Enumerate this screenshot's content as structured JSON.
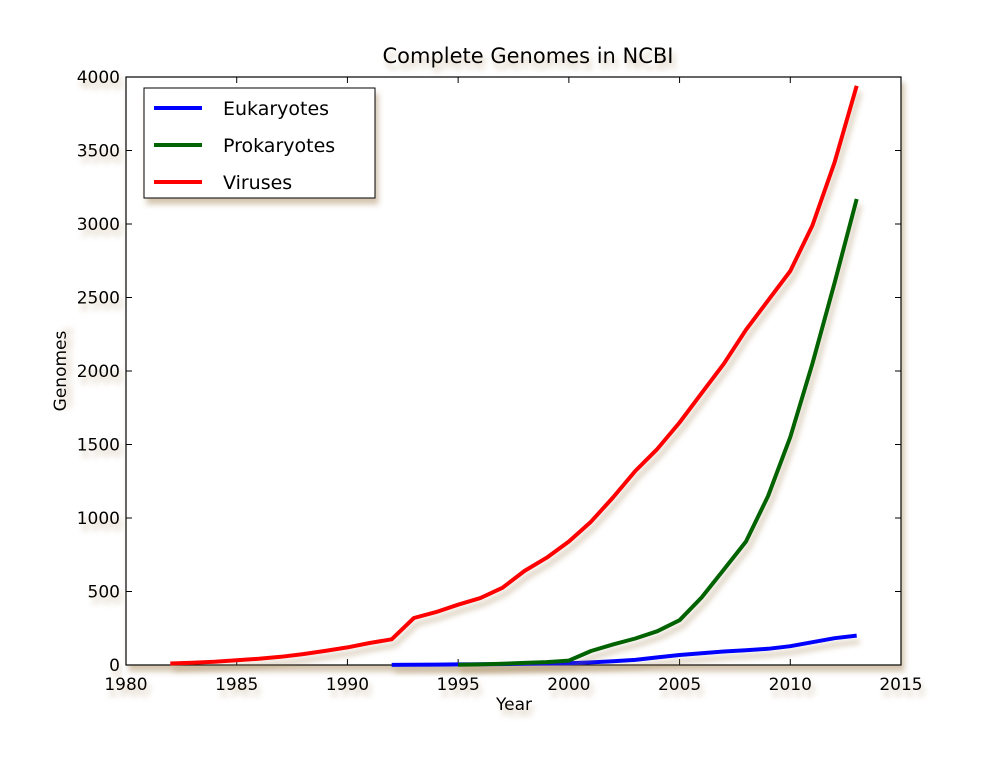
{
  "chart_data": {
    "type": "line",
    "title": "Complete Genomes in NCBI",
    "xlabel": "Year",
    "ylabel": "Genomes",
    "xlim": [
      1980,
      2015
    ],
    "ylim": [
      0,
      4000
    ],
    "x_ticks": [
      1980,
      1985,
      1990,
      1995,
      2000,
      2005,
      2010,
      2015
    ],
    "y_ticks": [
      0,
      500,
      1000,
      1500,
      2000,
      2500,
      3000,
      3500,
      4000
    ],
    "grid": false,
    "legend_position": "upper-left",
    "series": [
      {
        "name": "Eukaryotes",
        "color": "#0000ff",
        "points": [
          [
            1992,
            1
          ],
          [
            1993,
            2
          ],
          [
            1994,
            3
          ],
          [
            1995,
            4
          ],
          [
            1996,
            5
          ],
          [
            1997,
            6
          ],
          [
            1998,
            8
          ],
          [
            1999,
            10
          ],
          [
            2000,
            12
          ],
          [
            2001,
            18
          ],
          [
            2002,
            25
          ],
          [
            2003,
            35
          ],
          [
            2004,
            52
          ],
          [
            2005,
            68
          ],
          [
            2006,
            80
          ],
          [
            2007,
            92
          ],
          [
            2008,
            100
          ],
          [
            2009,
            110
          ],
          [
            2010,
            128
          ],
          [
            2011,
            155
          ],
          [
            2012,
            182
          ],
          [
            2013,
            200
          ]
        ]
      },
      {
        "name": "Prokaryotes",
        "color": "#006400",
        "points": [
          [
            1995,
            2
          ],
          [
            1996,
            4
          ],
          [
            1997,
            8
          ],
          [
            1998,
            14
          ],
          [
            1999,
            20
          ],
          [
            2000,
            30
          ],
          [
            2001,
            95
          ],
          [
            2002,
            140
          ],
          [
            2003,
            180
          ],
          [
            2004,
            230
          ],
          [
            2005,
            305
          ],
          [
            2006,
            460
          ],
          [
            2007,
            650
          ],
          [
            2008,
            840
          ],
          [
            2009,
            1150
          ],
          [
            2010,
            1550
          ],
          [
            2011,
            2050
          ],
          [
            2012,
            2600
          ],
          [
            2013,
            3170
          ]
        ]
      },
      {
        "name": "Viruses",
        "color": "#ff0000",
        "points": [
          [
            1982,
            10
          ],
          [
            1983,
            15
          ],
          [
            1984,
            22
          ],
          [
            1985,
            32
          ],
          [
            1986,
            42
          ],
          [
            1987,
            56
          ],
          [
            1988,
            74
          ],
          [
            1989,
            96
          ],
          [
            1990,
            120
          ],
          [
            1991,
            150
          ],
          [
            1992,
            175
          ],
          [
            1993,
            320
          ],
          [
            1994,
            360
          ],
          [
            1995,
            410
          ],
          [
            1996,
            455
          ],
          [
            1997,
            525
          ],
          [
            1998,
            640
          ],
          [
            1999,
            730
          ],
          [
            2000,
            840
          ],
          [
            2001,
            975
          ],
          [
            2002,
            1140
          ],
          [
            2003,
            1320
          ],
          [
            2004,
            1470
          ],
          [
            2005,
            1650
          ],
          [
            2006,
            1850
          ],
          [
            2007,
            2050
          ],
          [
            2008,
            2280
          ],
          [
            2009,
            2480
          ],
          [
            2010,
            2680
          ],
          [
            2011,
            2990
          ],
          [
            2012,
            3420
          ],
          [
            2013,
            3940
          ]
        ]
      }
    ]
  }
}
